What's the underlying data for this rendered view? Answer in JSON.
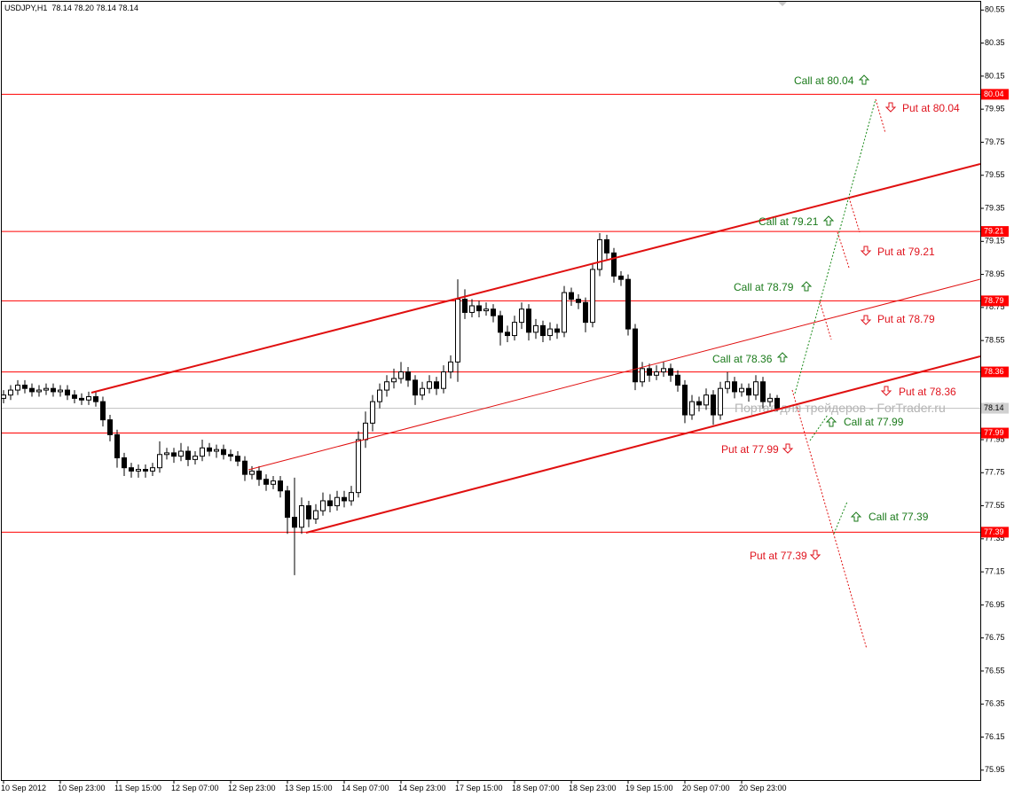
{
  "chart_data": {
    "type": "candlestick",
    "title": "USDJPY,H1  78.14 78.20 78.14 78.14",
    "categories": [
      "10 Sep 2012",
      null,
      null,
      null,
      null,
      null,
      null,
      null,
      "10 Sep 23:00",
      null,
      null,
      null,
      null,
      null,
      null,
      null,
      "11 Sep 15:00",
      null,
      null,
      null,
      null,
      null,
      null,
      null,
      "12 Sep 07:00",
      null,
      null,
      null,
      null,
      null,
      null,
      null,
      "12 Sep 23:00",
      null,
      null,
      null,
      null,
      null,
      null,
      null,
      "13 Sep 15:00",
      null,
      null,
      null,
      null,
      null,
      null,
      null,
      "14 Sep 07:00",
      null,
      null,
      null,
      null,
      null,
      null,
      null,
      "14 Sep 23:00",
      null,
      null,
      null,
      null,
      null,
      null,
      null,
      "17 Sep 15:00",
      null,
      null,
      null,
      null,
      null,
      null,
      null,
      "18 Sep 07:00",
      null,
      null,
      null,
      null,
      null,
      null,
      null,
      "18 Sep 23:00",
      null,
      null,
      null,
      null,
      null,
      null,
      null,
      "19 Sep 15:00",
      null,
      null,
      null,
      null,
      null,
      null,
      null,
      "20 Sep 07:00",
      null,
      null,
      null,
      null,
      null,
      null,
      null,
      "20 Sep 23:00",
      null,
      null,
      null,
      null,
      null
    ],
    "values": [
      [
        78.2,
        78.25,
        78.17,
        78.22
      ],
      [
        78.22,
        78.28,
        78.19,
        78.25
      ],
      [
        78.25,
        78.31,
        78.22,
        78.28
      ],
      [
        78.28,
        78.31,
        78.23,
        78.26
      ],
      [
        78.26,
        78.29,
        78.21,
        78.24
      ],
      [
        78.24,
        78.28,
        78.21,
        78.25
      ],
      [
        78.25,
        78.29,
        78.22,
        78.26
      ],
      [
        78.26,
        78.29,
        78.21,
        78.24
      ],
      [
        78.24,
        78.28,
        78.21,
        78.25
      ],
      [
        78.25,
        78.28,
        78.19,
        78.22
      ],
      [
        78.22,
        78.25,
        78.17,
        78.2
      ],
      [
        78.2,
        78.23,
        78.16,
        78.19
      ],
      [
        78.19,
        78.24,
        78.16,
        78.21
      ],
      [
        78.21,
        78.24,
        78.15,
        78.18
      ],
      [
        78.18,
        78.21,
        78.03,
        78.07
      ],
      [
        78.07,
        78.1,
        77.94,
        77.98
      ],
      [
        77.98,
        78.01,
        77.78,
        77.84
      ],
      [
        77.84,
        77.87,
        77.73,
        77.78
      ],
      [
        77.78,
        77.81,
        77.72,
        77.76
      ],
      [
        77.76,
        77.8,
        77.72,
        77.77
      ],
      [
        77.77,
        77.8,
        77.72,
        77.76
      ],
      [
        77.76,
        77.81,
        77.73,
        77.78
      ],
      [
        77.78,
        77.94,
        77.75,
        77.86
      ],
      [
        77.86,
        77.9,
        77.83,
        77.87
      ],
      [
        77.87,
        77.9,
        77.81,
        77.85
      ],
      [
        77.85,
        77.93,
        77.82,
        77.88
      ],
      [
        77.88,
        77.91,
        77.79,
        77.83
      ],
      [
        77.83,
        77.88,
        77.8,
        77.85
      ],
      [
        77.85,
        77.95,
        77.82,
        77.9
      ],
      [
        77.9,
        77.93,
        77.85,
        77.88
      ],
      [
        77.88,
        77.92,
        77.84,
        77.89
      ],
      [
        77.89,
        77.92,
        77.83,
        77.86
      ],
      [
        77.86,
        77.89,
        77.82,
        77.85
      ],
      [
        77.85,
        77.88,
        77.79,
        77.82
      ],
      [
        77.82,
        77.85,
        77.7,
        77.74
      ],
      [
        77.74,
        77.79,
        77.71,
        77.76
      ],
      [
        77.76,
        77.79,
        77.67,
        77.71
      ],
      [
        77.71,
        77.74,
        77.64,
        77.68
      ],
      [
        77.68,
        77.73,
        77.65,
        77.7
      ],
      [
        77.7,
        77.73,
        77.6,
        77.64
      ],
      [
        77.64,
        77.67,
        77.38,
        77.48
      ],
      [
        77.48,
        77.72,
        77.13,
        77.42
      ],
      [
        77.42,
        77.6,
        77.38,
        77.55
      ],
      [
        77.55,
        77.58,
        77.42,
        77.47
      ],
      [
        77.47,
        77.56,
        77.44,
        77.52
      ],
      [
        77.52,
        77.63,
        77.49,
        77.58
      ],
      [
        77.58,
        77.62,
        77.51,
        77.55
      ],
      [
        77.55,
        77.64,
        77.52,
        77.6
      ],
      [
        77.6,
        77.64,
        77.54,
        77.58
      ],
      [
        77.58,
        77.67,
        77.55,
        77.63
      ],
      [
        77.63,
        78.0,
        77.6,
        77.95
      ],
      [
        77.95,
        78.12,
        77.9,
        78.05
      ],
      [
        78.05,
        78.22,
        78.0,
        78.18
      ],
      [
        78.18,
        78.29,
        78.14,
        78.25
      ],
      [
        78.25,
        78.34,
        78.21,
        78.3
      ],
      [
        78.3,
        78.38,
        78.26,
        78.32
      ],
      [
        78.32,
        78.42,
        78.29,
        78.36
      ],
      [
        78.36,
        78.39,
        78.27,
        78.31
      ],
      [
        78.31,
        78.34,
        78.16,
        78.22
      ],
      [
        78.22,
        78.3,
        78.19,
        78.26
      ],
      [
        78.26,
        78.34,
        78.23,
        78.3
      ],
      [
        78.3,
        78.33,
        78.22,
        78.26
      ],
      [
        78.26,
        78.4,
        78.23,
        78.36
      ],
      [
        78.36,
        78.46,
        78.32,
        78.42
      ],
      [
        78.42,
        78.92,
        78.3,
        78.8
      ],
      [
        78.8,
        78.86,
        78.68,
        78.72
      ],
      [
        78.72,
        78.8,
        78.69,
        78.76
      ],
      [
        78.76,
        78.79,
        78.69,
        78.73
      ],
      [
        78.73,
        78.78,
        78.7,
        78.74
      ],
      [
        78.74,
        78.77,
        78.66,
        78.7
      ],
      [
        78.7,
        78.73,
        78.52,
        78.6
      ],
      [
        78.6,
        78.64,
        78.54,
        78.58
      ],
      [
        78.58,
        78.7,
        78.55,
        78.66
      ],
      [
        78.66,
        78.78,
        78.62,
        78.74
      ],
      [
        78.74,
        78.77,
        78.55,
        78.6
      ],
      [
        78.6,
        78.68,
        78.56,
        78.64
      ],
      [
        78.64,
        78.67,
        78.54,
        78.58
      ],
      [
        78.58,
        78.66,
        78.55,
        78.62
      ],
      [
        78.62,
        78.65,
        78.56,
        78.6
      ],
      [
        78.6,
        78.88,
        78.57,
        78.84
      ],
      [
        78.84,
        78.87,
        78.76,
        78.8
      ],
      [
        78.8,
        78.83,
        78.74,
        78.78
      ],
      [
        78.78,
        78.81,
        78.6,
        78.66
      ],
      [
        78.66,
        79.02,
        78.63,
        78.98
      ],
      [
        78.98,
        79.2,
        78.94,
        79.16
      ],
      [
        79.16,
        79.19,
        79.04,
        79.08
      ],
      [
        79.08,
        79.11,
        78.9,
        78.94
      ],
      [
        78.94,
        78.97,
        78.88,
        78.92
      ],
      [
        78.92,
        78.95,
        78.58,
        78.62
      ],
      [
        78.62,
        78.65,
        78.25,
        78.3
      ],
      [
        78.3,
        78.42,
        78.27,
        78.38
      ],
      [
        78.38,
        78.41,
        78.3,
        78.34
      ],
      [
        78.34,
        78.4,
        78.31,
        78.36
      ],
      [
        78.36,
        78.42,
        78.33,
        78.38
      ],
      [
        78.38,
        78.41,
        78.3,
        78.34
      ],
      [
        78.34,
        78.37,
        78.24,
        78.28
      ],
      [
        78.28,
        78.31,
        78.05,
        78.1
      ],
      [
        78.1,
        78.22,
        78.07,
        78.18
      ],
      [
        78.18,
        78.21,
        78.12,
        78.16
      ],
      [
        78.16,
        78.26,
        78.13,
        78.22
      ],
      [
        78.22,
        78.25,
        78.04,
        78.1
      ],
      [
        78.1,
        78.3,
        78.07,
        78.26
      ],
      [
        78.26,
        78.36,
        78.23,
        78.3
      ],
      [
        78.3,
        78.33,
        78.2,
        78.24
      ],
      [
        78.24,
        78.29,
        78.21,
        78.26
      ],
      [
        78.26,
        78.29,
        78.18,
        78.22
      ],
      [
        78.22,
        78.34,
        78.19,
        78.3
      ],
      [
        78.3,
        78.33,
        78.14,
        78.18
      ],
      [
        78.18,
        78.23,
        78.15,
        78.2
      ],
      [
        78.2,
        78.22,
        78.12,
        78.14
      ]
    ],
    "up_color": "#ffffff",
    "down_color": "#000000",
    "ylim": [
      75.89,
      80.6
    ],
    "yticks": [
      75.95,
      76.15,
      76.35,
      76.55,
      76.75,
      76.95,
      77.15,
      77.35,
      77.55,
      77.75,
      77.95,
      78.15,
      78.35,
      78.55,
      78.75,
      78.95,
      79.15,
      79.35,
      79.55,
      79.75,
      79.95,
      80.15,
      80.35,
      80.55
    ],
    "levels": [
      80.04,
      79.21,
      78.79,
      78.36,
      77.99,
      77.39
    ],
    "level_color": "#ff0000",
    "current_price": 78.14,
    "annotations": [
      "Call at 80.04",
      "Put at 80.04",
      "Call at 79.21",
      "Put at 79.21",
      "Call at 78.79",
      "Put at 78.79",
      "Call at 78.36",
      "Put at 78.36",
      "Call at 77.99",
      "Put at 77.99",
      "Call at 77.39",
      "Put at 77.39"
    ],
    "watermark": "Портал для трейдеров - ForTrader.ru"
  }
}
